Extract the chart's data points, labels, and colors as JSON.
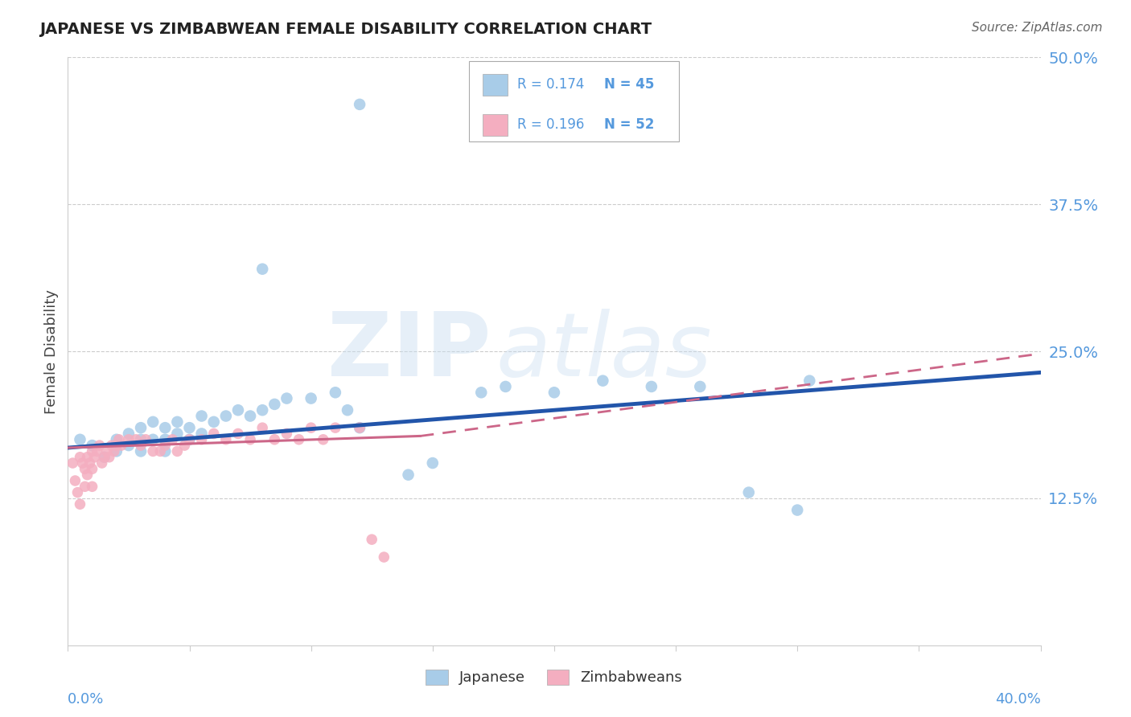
{
  "title": "JAPANESE VS ZIMBABWEAN FEMALE DISABILITY CORRELATION CHART",
  "source_text": "Source: ZipAtlas.com",
  "ylabel": "Female Disability",
  "xlim": [
    0.0,
    0.4
  ],
  "ylim": [
    0.0,
    0.5
  ],
  "background_color": "#ffffff",
  "watermark_zip": "ZIP",
  "watermark_atlas": "atlas",
  "legend_r1": "R = 0.174",
  "legend_n1": "N = 45",
  "legend_r2": "R = 0.196",
  "legend_n2": "N = 52",
  "blue_color": "#a8cce8",
  "pink_color": "#f4aec0",
  "line_blue": "#2255aa",
  "line_pink": "#cc6688",
  "tick_color": "#5599dd",
  "japanese_x": [
    0.005,
    0.01,
    0.015,
    0.02,
    0.02,
    0.025,
    0.025,
    0.03,
    0.03,
    0.03,
    0.035,
    0.035,
    0.04,
    0.04,
    0.04,
    0.045,
    0.045,
    0.05,
    0.05,
    0.055,
    0.055,
    0.06,
    0.065,
    0.07,
    0.075,
    0.08,
    0.085,
    0.09,
    0.1,
    0.11,
    0.115,
    0.12,
    0.14,
    0.15,
    0.17,
    0.18,
    0.2,
    0.22,
    0.24,
    0.26,
    0.28,
    0.3,
    0.305,
    0.12,
    0.08
  ],
  "japanese_y": [
    0.175,
    0.17,
    0.16,
    0.175,
    0.165,
    0.18,
    0.17,
    0.185,
    0.175,
    0.165,
    0.19,
    0.175,
    0.185,
    0.175,
    0.165,
    0.19,
    0.18,
    0.185,
    0.175,
    0.195,
    0.18,
    0.19,
    0.195,
    0.2,
    0.195,
    0.2,
    0.205,
    0.21,
    0.21,
    0.215,
    0.2,
    0.185,
    0.145,
    0.155,
    0.215,
    0.22,
    0.215,
    0.225,
    0.22,
    0.22,
    0.13,
    0.115,
    0.225,
    0.46,
    0.32
  ],
  "zimbabwean_x": [
    0.002,
    0.003,
    0.004,
    0.005,
    0.005,
    0.006,
    0.007,
    0.007,
    0.008,
    0.008,
    0.009,
    0.01,
    0.01,
    0.01,
    0.011,
    0.012,
    0.013,
    0.014,
    0.015,
    0.016,
    0.017,
    0.018,
    0.019,
    0.02,
    0.021,
    0.022,
    0.025,
    0.028,
    0.03,
    0.032,
    0.035,
    0.038,
    0.04,
    0.043,
    0.045,
    0.048,
    0.05,
    0.055,
    0.06,
    0.065,
    0.07,
    0.075,
    0.08,
    0.085,
    0.09,
    0.095,
    0.1,
    0.105,
    0.11,
    0.12,
    0.125,
    0.13
  ],
  "zimbabwean_y": [
    0.155,
    0.14,
    0.13,
    0.16,
    0.12,
    0.155,
    0.15,
    0.135,
    0.16,
    0.145,
    0.155,
    0.165,
    0.15,
    0.135,
    0.16,
    0.165,
    0.17,
    0.155,
    0.16,
    0.165,
    0.16,
    0.17,
    0.165,
    0.17,
    0.175,
    0.17,
    0.175,
    0.175,
    0.17,
    0.175,
    0.165,
    0.165,
    0.17,
    0.175,
    0.165,
    0.17,
    0.175,
    0.175,
    0.18,
    0.175,
    0.18,
    0.175,
    0.185,
    0.175,
    0.18,
    0.175,
    0.185,
    0.175,
    0.185,
    0.185,
    0.09,
    0.075
  ],
  "jap_line_x": [
    0.0,
    0.4
  ],
  "jap_line_y": [
    0.168,
    0.232
  ],
  "zim_line_x0": 0.0,
  "zim_line_x_solid_end": 0.145,
  "zim_line_x_dash_end": 0.4,
  "zim_line_y0": 0.168,
  "zim_line_y_solid_end": 0.178,
  "zim_line_y_dash_end": 0.248
}
